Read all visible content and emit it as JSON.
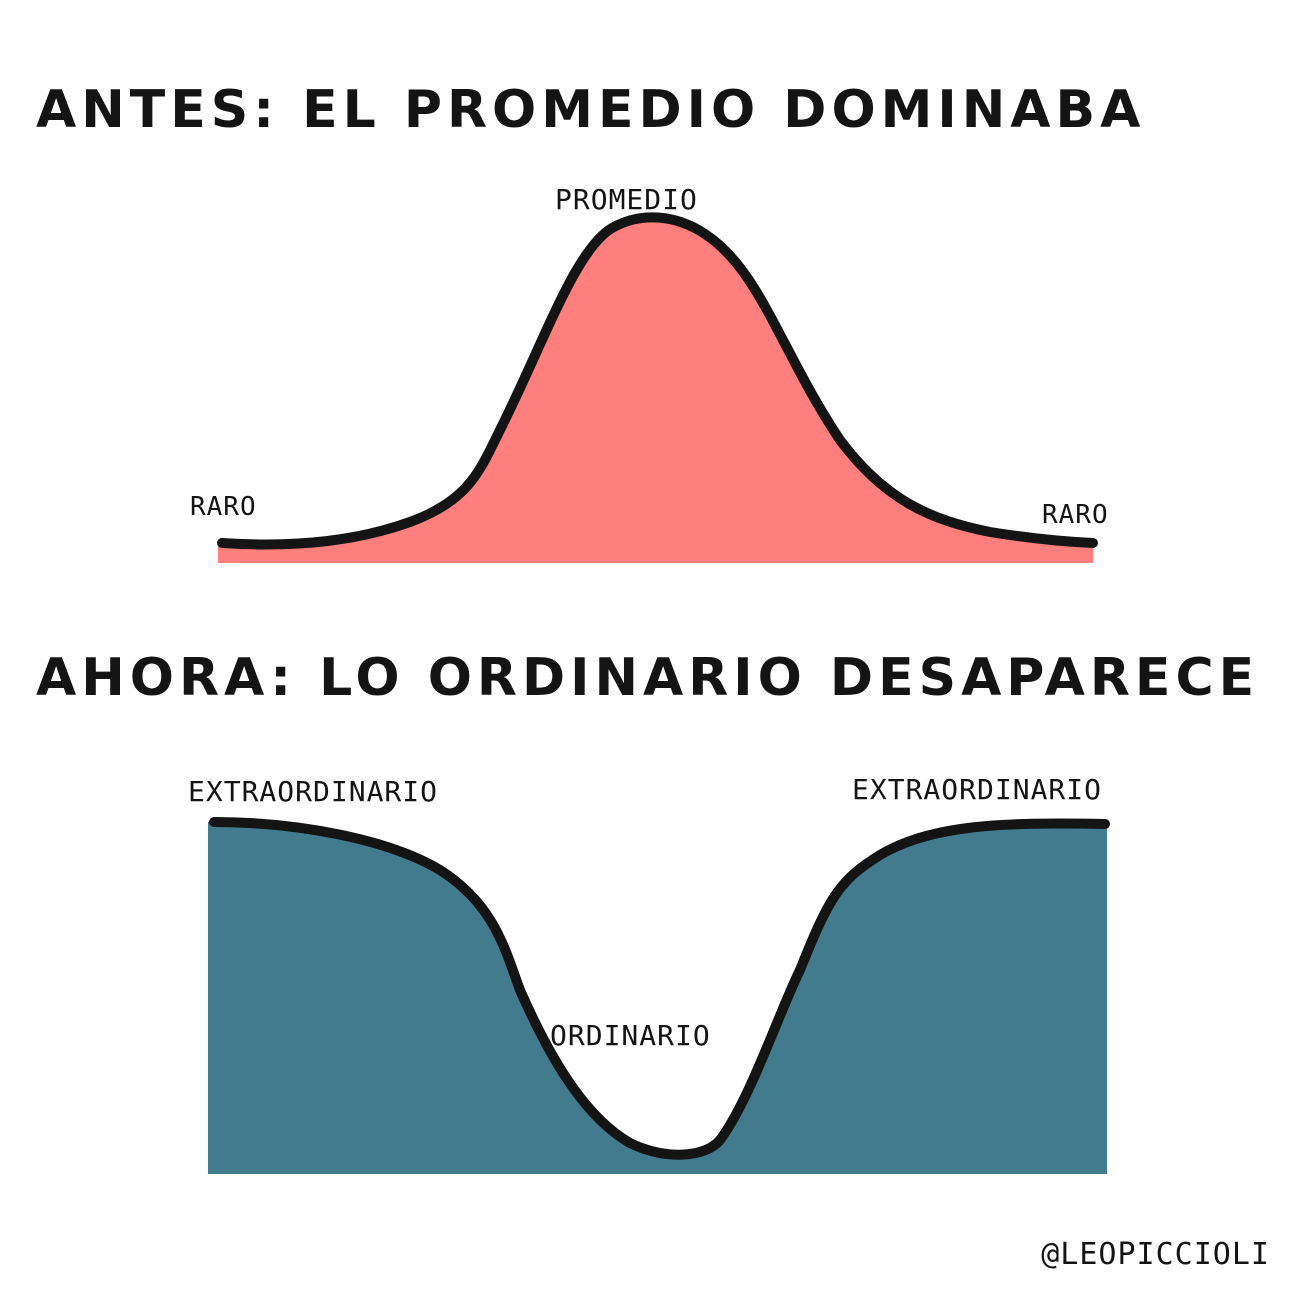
{
  "titles": {
    "top": "ANTES: EL PROMEDIO DOMINABA",
    "bottom": "AHORA: LO ORDINARIO DESAPARECE"
  },
  "top_chart": {
    "label_center": "PROMEDIO",
    "label_left": "RARO",
    "label_right": "RARO",
    "fill_color": "#ff7f7e"
  },
  "bottom_chart": {
    "label_left": "EXTRAORDINARIO",
    "label_right": "EXTRAORDINARIO",
    "label_center": "ORDINARIO",
    "fill_color": "#427a8e"
  },
  "signature": "@LEOPICCIOLI",
  "colors": {
    "ink": "#141414",
    "background": "#ffffff"
  }
}
